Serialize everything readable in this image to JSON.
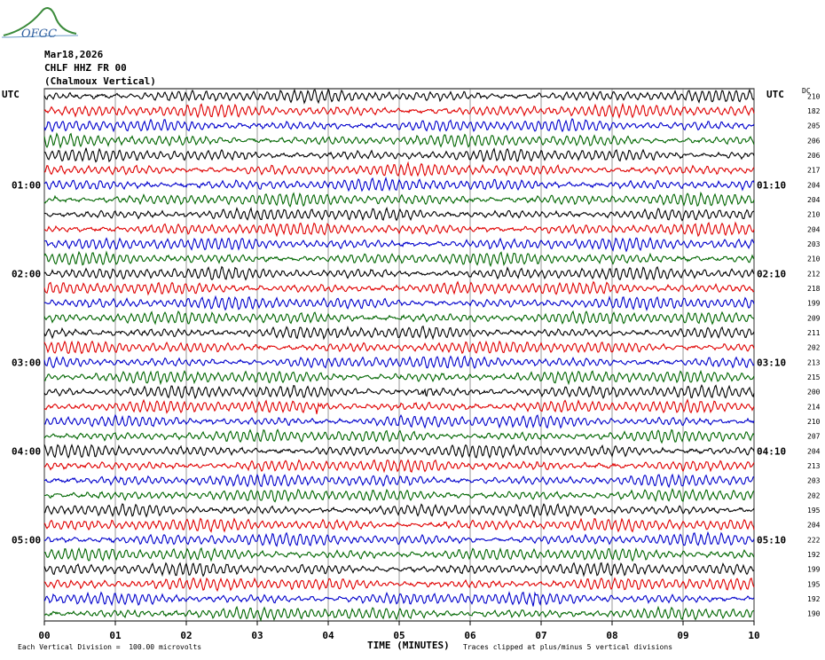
{
  "logo": {
    "text": "OFGC",
    "name": "logo"
  },
  "header": {
    "date": "Mar18,2026",
    "station": "CHLF HHZ FR 00",
    "location": "(Chalmoux Vertical)"
  },
  "axis": {
    "left_title": "UTC",
    "right_title": "UTC",
    "dc_title": "DC",
    "xlabel": "TIME (MINUTES)"
  },
  "footer": {
    "scale_note": "Each Vertical Division =  100.00 microvolts",
    "clip_note": "Traces clipped at plus/minus 5 vertical divisions"
  },
  "chart_data": {
    "type": "line",
    "xlim": [
      0,
      10
    ],
    "x_ticks": [
      "00",
      "01",
      "02",
      "03",
      "04",
      "05",
      "06",
      "07",
      "08",
      "09",
      "10"
    ],
    "trace_colors": [
      "#000000",
      "#e00000",
      "#0000cc",
      "#006600"
    ],
    "left_time_labels": [
      {
        "row": 6,
        "label": "01:00"
      },
      {
        "row": 12,
        "label": "02:00"
      },
      {
        "row": 18,
        "label": "03:00"
      },
      {
        "row": 24,
        "label": "04:00"
      },
      {
        "row": 30,
        "label": "05:00"
      }
    ],
    "right_time_labels": [
      {
        "row": 6,
        "label": "01:10"
      },
      {
        "row": 12,
        "label": "02:10"
      },
      {
        "row": 18,
        "label": "03:10"
      },
      {
        "row": 24,
        "label": "04:10"
      },
      {
        "row": 30,
        "label": "05:10"
      }
    ],
    "dc_values": [
      210,
      182,
      205,
      206,
      206,
      217,
      204,
      204,
      210,
      204,
      203,
      210,
      212,
      218,
      199,
      209,
      211,
      202,
      213,
      215,
      200,
      214,
      210,
      207,
      204,
      213,
      203,
      202,
      195,
      204,
      222,
      192,
      199,
      195,
      192,
      190
    ],
    "events": [
      {
        "row": 20,
        "minute": 5.35
      },
      {
        "row": 21,
        "minute": 3.85
      },
      {
        "row": 34,
        "minute": 6.9
      }
    ],
    "grid": true
  }
}
